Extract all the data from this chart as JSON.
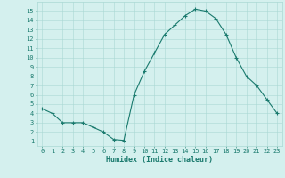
{
  "x": [
    0,
    1,
    2,
    3,
    4,
    5,
    6,
    7,
    8,
    9,
    10,
    11,
    12,
    13,
    14,
    15,
    16,
    17,
    18,
    19,
    20,
    21,
    22,
    23
  ],
  "y": [
    4.5,
    4.0,
    3.0,
    3.0,
    3.0,
    2.5,
    2.0,
    1.2,
    1.1,
    6.0,
    8.5,
    10.5,
    12.5,
    13.5,
    14.5,
    15.2,
    15.0,
    14.2,
    12.5,
    10.0,
    8.0,
    7.0,
    5.5,
    4.0
  ],
  "xlabel": "Humidex (Indice chaleur)",
  "line_color": "#1a7a6e",
  "marker": "+",
  "marker_size": 3,
  "marker_lw": 0.8,
  "bg_color": "#d4f0ee",
  "grid_color": "#aad8d4",
  "xlim": [
    -0.5,
    23.5
  ],
  "ylim": [
    0.5,
    16
  ],
  "xticks": [
    0,
    1,
    2,
    3,
    4,
    5,
    6,
    7,
    8,
    9,
    10,
    11,
    12,
    13,
    14,
    15,
    16,
    17,
    18,
    19,
    20,
    21,
    22,
    23
  ],
  "yticks": [
    1,
    2,
    3,
    4,
    5,
    6,
    7,
    8,
    9,
    10,
    11,
    12,
    13,
    14,
    15
  ],
  "tick_fontsize": 5,
  "xlabel_fontsize": 6,
  "tick_color": "#1a7a6e",
  "xlabel_color": "#1a7a6e",
  "line_width": 0.8
}
